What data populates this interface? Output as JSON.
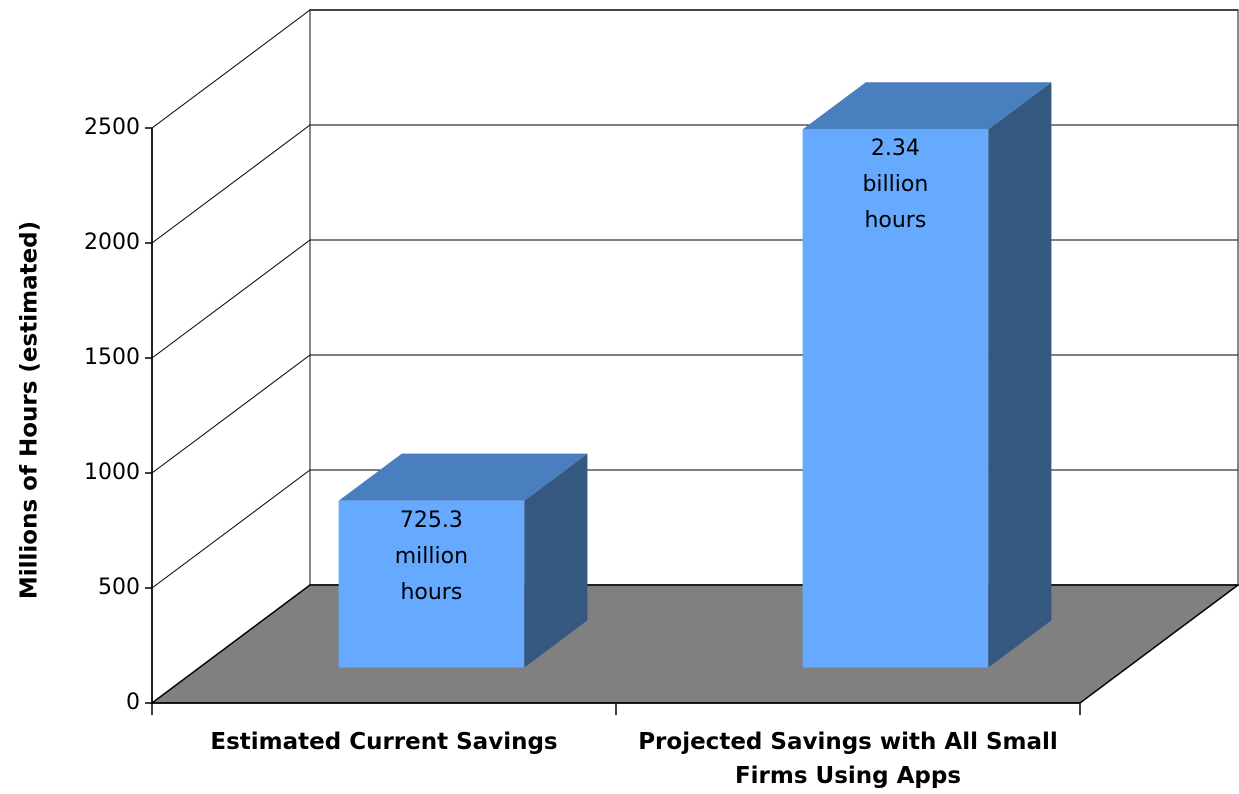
{
  "chart_data": {
    "type": "bar3d",
    "y_label": "Millions of Hours (estimated)",
    "categories": [
      "Estimated Current Savings",
      "Projected Savings with All Small Firms Using Apps"
    ],
    "values": [
      725.3,
      2340
    ],
    "value_labels": [
      "725.3 million hours",
      "2.34 billion hours"
    ],
    "ylim": [
      0,
      2500
    ],
    "yticks": [
      0,
      500,
      1000,
      1500,
      2000,
      2500
    ],
    "grid": true,
    "colors": {
      "front": "#66aaff",
      "side": "#34587f",
      "top": "#4a7fbf",
      "floor": "#808080"
    }
  }
}
